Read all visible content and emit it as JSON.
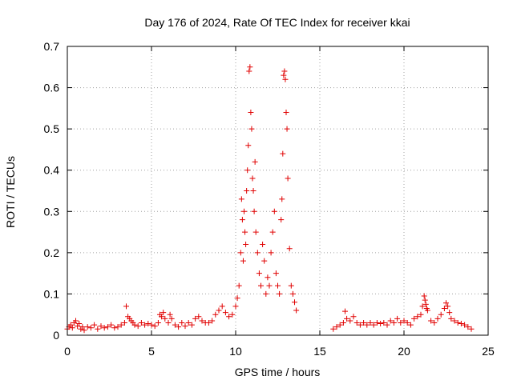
{
  "chart_data": {
    "type": "scatter",
    "title": "Day 176 of 2024, Rate Of TEC Index for receiver kkai",
    "xlabel": "GPS time / hours",
    "ylabel": "ROTI / TECUs",
    "xlim": [
      0,
      25
    ],
    "ylim": [
      0,
      0.7
    ],
    "xticks": [
      0,
      5,
      10,
      15,
      20,
      25
    ],
    "yticks": [
      0,
      0.1,
      0.2,
      0.3,
      0.4,
      0.5,
      0.6,
      0.7
    ],
    "xtick_labels": [
      "0",
      "5",
      "10",
      "15",
      "20",
      "25"
    ],
    "ytick_labels": [
      "0",
      "0.1",
      "0.2",
      "0.3",
      "0.4",
      "0.5",
      "0.6",
      "0.7"
    ],
    "grid": true,
    "marker": "+",
    "color": "#e00000",
    "series": [
      {
        "name": "ROTI",
        "points": [
          [
            0.0,
            0.015
          ],
          [
            0.1,
            0.02
          ],
          [
            0.2,
            0.025
          ],
          [
            0.3,
            0.018
          ],
          [
            0.4,
            0.03
          ],
          [
            0.5,
            0.035
          ],
          [
            0.6,
            0.022
          ],
          [
            0.7,
            0.028
          ],
          [
            0.8,
            0.015
          ],
          [
            0.9,
            0.02
          ],
          [
            1.0,
            0.012
          ],
          [
            1.2,
            0.02
          ],
          [
            1.4,
            0.018
          ],
          [
            1.6,
            0.025
          ],
          [
            1.8,
            0.015
          ],
          [
            2.0,
            0.022
          ],
          [
            2.2,
            0.018
          ],
          [
            2.4,
            0.02
          ],
          [
            2.6,
            0.025
          ],
          [
            2.8,
            0.018
          ],
          [
            3.0,
            0.02
          ],
          [
            3.2,
            0.025
          ],
          [
            3.4,
            0.03
          ],
          [
            3.5,
            0.07
          ],
          [
            3.6,
            0.045
          ],
          [
            3.7,
            0.04
          ],
          [
            3.8,
            0.035
          ],
          [
            3.9,
            0.03
          ],
          [
            4.0,
            0.025
          ],
          [
            4.2,
            0.022
          ],
          [
            4.4,
            0.03
          ],
          [
            4.6,
            0.025
          ],
          [
            4.8,
            0.028
          ],
          [
            5.0,
            0.025
          ],
          [
            5.2,
            0.022
          ],
          [
            5.4,
            0.03
          ],
          [
            5.5,
            0.05
          ],
          [
            5.6,
            0.045
          ],
          [
            5.7,
            0.055
          ],
          [
            5.8,
            0.04
          ],
          [
            6.0,
            0.03
          ],
          [
            6.1,
            0.05
          ],
          [
            6.2,
            0.04
          ],
          [
            6.4,
            0.025
          ],
          [
            6.6,
            0.02
          ],
          [
            6.8,
            0.03
          ],
          [
            7.0,
            0.022
          ],
          [
            7.2,
            0.03
          ],
          [
            7.4,
            0.025
          ],
          [
            7.6,
            0.04
          ],
          [
            7.8,
            0.045
          ],
          [
            8.0,
            0.035
          ],
          [
            8.2,
            0.03
          ],
          [
            8.4,
            0.03
          ],
          [
            8.6,
            0.035
          ],
          [
            8.8,
            0.05
          ],
          [
            9.0,
            0.06
          ],
          [
            9.2,
            0.07
          ],
          [
            9.4,
            0.055
          ],
          [
            9.6,
            0.045
          ],
          [
            9.8,
            0.05
          ],
          [
            10.0,
            0.07
          ],
          [
            10.1,
            0.09
          ],
          [
            10.2,
            0.12
          ],
          [
            10.3,
            0.2
          ],
          [
            10.35,
            0.33
          ],
          [
            10.4,
            0.28
          ],
          [
            10.45,
            0.18
          ],
          [
            10.5,
            0.3
          ],
          [
            10.55,
            0.25
          ],
          [
            10.6,
            0.22
          ],
          [
            10.65,
            0.35
          ],
          [
            10.7,
            0.4
          ],
          [
            10.75,
            0.46
          ],
          [
            10.8,
            0.64
          ],
          [
            10.85,
            0.65
          ],
          [
            10.9,
            0.54
          ],
          [
            10.95,
            0.5
          ],
          [
            11.0,
            0.38
          ],
          [
            11.05,
            0.35
          ],
          [
            11.1,
            0.3
          ],
          [
            11.15,
            0.42
          ],
          [
            11.2,
            0.25
          ],
          [
            11.3,
            0.2
          ],
          [
            11.4,
            0.15
          ],
          [
            11.5,
            0.12
          ],
          [
            11.6,
            0.22
          ],
          [
            11.7,
            0.18
          ],
          [
            11.8,
            0.1
          ],
          [
            11.9,
            0.14
          ],
          [
            12.0,
            0.12
          ],
          [
            12.1,
            0.2
          ],
          [
            12.2,
            0.25
          ],
          [
            12.3,
            0.3
          ],
          [
            12.4,
            0.15
          ],
          [
            12.5,
            0.12
          ],
          [
            12.6,
            0.1
          ],
          [
            12.7,
            0.28
          ],
          [
            12.75,
            0.33
          ],
          [
            12.8,
            0.44
          ],
          [
            12.85,
            0.63
          ],
          [
            12.9,
            0.64
          ],
          [
            12.95,
            0.62
          ],
          [
            13.0,
            0.54
          ],
          [
            13.05,
            0.5
          ],
          [
            13.1,
            0.38
          ],
          [
            13.2,
            0.21
          ],
          [
            13.3,
            0.12
          ],
          [
            13.4,
            0.1
          ],
          [
            13.5,
            0.08
          ],
          [
            13.6,
            0.06
          ],
          [
            15.8,
            0.015
          ],
          [
            16.0,
            0.02
          ],
          [
            16.2,
            0.025
          ],
          [
            16.4,
            0.03
          ],
          [
            16.5,
            0.058
          ],
          [
            16.6,
            0.04
          ],
          [
            16.8,
            0.035
          ],
          [
            17.0,
            0.045
          ],
          [
            17.2,
            0.03
          ],
          [
            17.4,
            0.025
          ],
          [
            17.6,
            0.03
          ],
          [
            17.8,
            0.025
          ],
          [
            18.0,
            0.03
          ],
          [
            18.2,
            0.025
          ],
          [
            18.4,
            0.03
          ],
          [
            18.6,
            0.028
          ],
          [
            18.8,
            0.03
          ],
          [
            19.0,
            0.025
          ],
          [
            19.2,
            0.035
          ],
          [
            19.4,
            0.03
          ],
          [
            19.6,
            0.04
          ],
          [
            19.8,
            0.03
          ],
          [
            20.0,
            0.035
          ],
          [
            20.2,
            0.03
          ],
          [
            20.4,
            0.025
          ],
          [
            20.6,
            0.04
          ],
          [
            20.8,
            0.045
          ],
          [
            21.0,
            0.05
          ],
          [
            21.1,
            0.07
          ],
          [
            21.2,
            0.095
          ],
          [
            21.25,
            0.085
          ],
          [
            21.3,
            0.075
          ],
          [
            21.35,
            0.065
          ],
          [
            21.4,
            0.06
          ],
          [
            21.6,
            0.035
          ],
          [
            21.8,
            0.03
          ],
          [
            22.0,
            0.04
          ],
          [
            22.2,
            0.05
          ],
          [
            22.4,
            0.065
          ],
          [
            22.5,
            0.078
          ],
          [
            22.6,
            0.07
          ],
          [
            22.7,
            0.055
          ],
          [
            22.8,
            0.04
          ],
          [
            23.0,
            0.035
          ],
          [
            23.2,
            0.03
          ],
          [
            23.4,
            0.028
          ],
          [
            23.6,
            0.025
          ],
          [
            23.8,
            0.02
          ],
          [
            24.0,
            0.015
          ]
        ]
      }
    ]
  }
}
